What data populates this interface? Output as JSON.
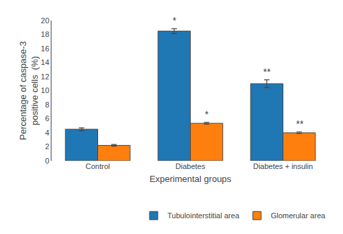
{
  "chart_data": {
    "type": "bar",
    "categories": [
      "Control",
      "Diabetes",
      "Diabetes + insulin"
    ],
    "series": [
      {
        "name": "Tubulointerstitial area",
        "values": [
          4.5,
          18.5,
          11.0
        ],
        "errors": [
          0.2,
          0.35,
          0.55
        ],
        "annotations": [
          null,
          "*",
          "**"
        ]
      },
      {
        "name": "Glomerular area",
        "values": [
          2.2,
          5.35,
          4.0
        ],
        "errors": [
          0.12,
          0.12,
          0.12
        ],
        "annotations": [
          null,
          "*",
          "**"
        ]
      }
    ],
    "xlabel": "Experimental groups",
    "ylabel": "Percentage of caspase-3\npositive cells  (%)",
    "ylim": [
      0,
      20
    ],
    "yticks": [
      0,
      2,
      4,
      6,
      8,
      10,
      12,
      14,
      16,
      18,
      20
    ],
    "grid": false,
    "legend": "lower right"
  }
}
